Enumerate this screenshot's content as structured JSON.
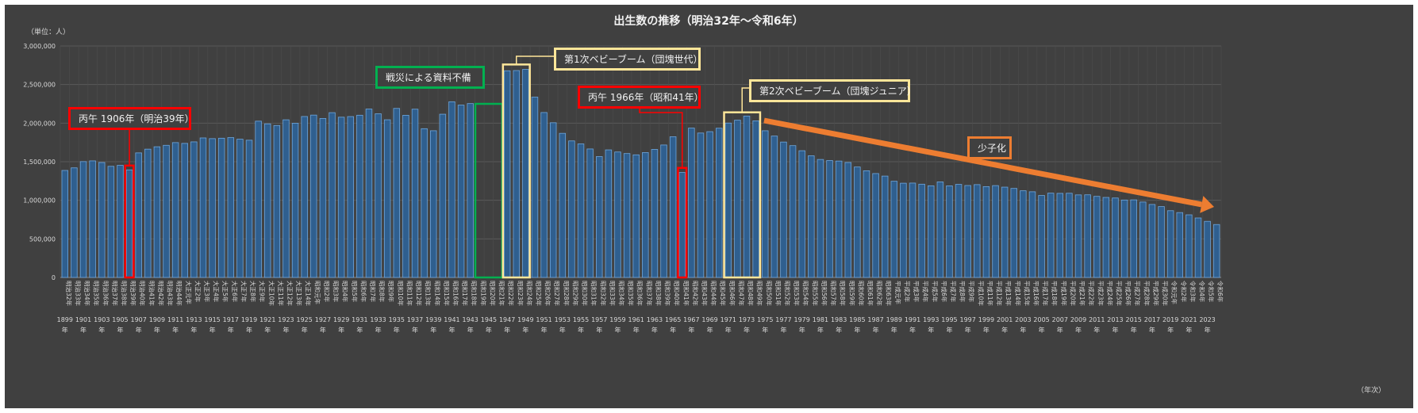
{
  "chart_data": {
    "type": "bar",
    "title": "出生数の推移（明治32年～令和6年）",
    "unit_label": "（単位：人）",
    "xlabel": "（年次）",
    "ylim": [
      0,
      3000000
    ],
    "y_ticks": [
      "0",
      "500,000",
      "1,000,000",
      "1,500,000",
      "2,000,000",
      "2,500,000",
      "3,000,000"
    ],
    "grid": true,
    "categories": [
      "明治32年",
      "明治33年",
      "明治34年",
      "明治35年",
      "明治36年",
      "明治37年",
      "明治38年",
      "明治39年",
      "明治40年",
      "明治41年",
      "明治42年",
      "明治43年",
      "明治44年",
      "大正元年",
      "大正2年",
      "大正3年",
      "大正4年",
      "大正5年",
      "大正6年",
      "大正7年",
      "大正8年",
      "大正9年",
      "大正10年",
      "大正11年",
      "大正12年",
      "大正13年",
      "大正14年",
      "昭和元年",
      "昭和2年",
      "昭和3年",
      "昭和4年",
      "昭和5年",
      "昭和6年",
      "昭和7年",
      "昭和8年",
      "昭和9年",
      "昭和10年",
      "昭和11年",
      "昭和12年",
      "昭和13年",
      "昭和14年",
      "昭和15年",
      "昭和16年",
      "昭和17年",
      "昭和18年",
      "昭和19年",
      "昭和20年",
      "昭和21年",
      "昭和22年",
      "昭和23年",
      "昭和24年",
      "昭和25年",
      "昭和26年",
      "昭和27年",
      "昭和28年",
      "昭和29年",
      "昭和30年",
      "昭和31年",
      "昭和32年",
      "昭和33年",
      "昭和34年",
      "昭和35年",
      "昭和36年",
      "昭和37年",
      "昭和38年",
      "昭和39年",
      "昭和40年",
      "昭和41年",
      "昭和42年",
      "昭和43年",
      "昭和44年",
      "昭和45年",
      "昭和46年",
      "昭和47年",
      "昭和48年",
      "昭和49年",
      "昭和50年",
      "昭和51年",
      "昭和52年",
      "昭和53年",
      "昭和54年",
      "昭和55年",
      "昭和56年",
      "昭和57年",
      "昭和58年",
      "昭和59年",
      "昭和60年",
      "昭和61年",
      "昭和62年",
      "昭和63年",
      "平成元年",
      "平成2年",
      "平成3年",
      "平成4年",
      "平成5年",
      "平成6年",
      "平成7年",
      "平成8年",
      "平成9年",
      "平成10年",
      "平成11年",
      "平成12年",
      "平成13年",
      "平成14年",
      "平成15年",
      "平成16年",
      "平成17年",
      "平成18年",
      "平成19年",
      "平成20年",
      "平成21年",
      "平成22年",
      "平成23年",
      "平成24年",
      "平成25年",
      "平成26年",
      "平成27年",
      "平成28年",
      "平成29年",
      "平成30年",
      "令和元年",
      "令和2年",
      "令和3年",
      "令和4年",
      "令和5年",
      "令和6年"
    ],
    "year_labels": [
      "1899",
      "1901",
      "1903",
      "1905",
      "1907",
      "1909",
      "1911",
      "1913",
      "1915",
      "1917",
      "1919",
      "1921",
      "1923",
      "1925",
      "1927",
      "1929",
      "1931",
      "1933",
      "1935",
      "1937",
      "1939",
      "1941",
      "1943",
      "1945",
      "1947",
      "1949",
      "1951",
      "1953",
      "1955",
      "1957",
      "1959",
      "1961",
      "1963",
      "1965",
      "1967",
      "1969",
      "1971",
      "1973",
      "1975",
      "1977",
      "1979",
      "1981",
      "1983",
      "1985",
      "1987",
      "1989",
      "1991",
      "1993",
      "1995",
      "1997",
      "1999",
      "2001",
      "2003",
      "2005",
      "2007",
      "2009",
      "2011",
      "2013",
      "2015",
      "2017",
      "2019",
      "2021",
      "2023"
    ],
    "year_suffix": "年",
    "values": [
      1386981,
      1420534,
      1501591,
      1510835,
      1489816,
      1440371,
      1452770,
      1394295,
      1614472,
      1662815,
      1693850,
      1712857,
      1747803,
      1737674,
      1757441,
      1808402,
      1799326,
      1804822,
      1812413,
      1791992,
      1778685,
      2025564,
      1990876,
      1969314,
      2043297,
      1998520,
      2086091,
      2104405,
      2060737,
      2135852,
      2077026,
      2085101,
      2102784,
      2182742,
      2121253,
      2043783,
      2190704,
      2101969,
      2180734,
      1928321,
      1901573,
      2115867,
      2277283,
      2233660,
      2253535,
      null,
      null,
      null,
      2678792,
      2681624,
      2696638,
      2337507,
      2137689,
      2005162,
      1868040,
      1769580,
      1730692,
      1665278,
      1566713,
      1653469,
      1626088,
      1606041,
      1589372,
      1618616,
      1659521,
      1716761,
      1823697,
      1360974,
      1935647,
      1871839,
      1889815,
      1934239,
      2000973,
      2038682,
      2091983,
      2029989,
      1901440,
      1832617,
      1755100,
      1708643,
      1642580,
      1576889,
      1529455,
      1515392,
      1508687,
      1489780,
      1431577,
      1382946,
      1346658,
      1314006,
      1246802,
      1221585,
      1223245,
      1208989,
      1188282,
      1238328,
      1187064,
      1206555,
      1191665,
      1203147,
      1177669,
      1190547,
      1170662,
      1153855,
      1123610,
      1110721,
      1062530,
      1092674,
      1089818,
      1091156,
      1070036,
      1071304,
      1050806,
      1037231,
      1029817,
      1003609,
      1005721,
      977242,
      946146,
      918400,
      865239,
      840835,
      811622,
      770759,
      727288,
      686061
    ],
    "series": [
      {
        "name": "出生数",
        "color": "#5b9bd5"
      }
    ]
  },
  "annotations": {
    "hinoeuma_1906": "丙午 1906年（明治39年）",
    "war_missing": "戦災による資料不備",
    "baby_boom_1": "第1次ベビーブーム（団塊世代）",
    "hinoeuma_1966": "丙午 1966年（昭和41年）",
    "baby_boom_2": "第2次ベビーブーム（団塊ジュニア）",
    "declining": "少子化"
  },
  "colors": {
    "background": "#404040",
    "bar_fill": "#2f5f8f",
    "bar_edge": "#6ea6dc",
    "grid": "#595959",
    "text": "#d9d9d9",
    "red": "#ff0000",
    "green": "#00b050",
    "yellow": "#ffe699",
    "orange": "#ed7d31"
  }
}
